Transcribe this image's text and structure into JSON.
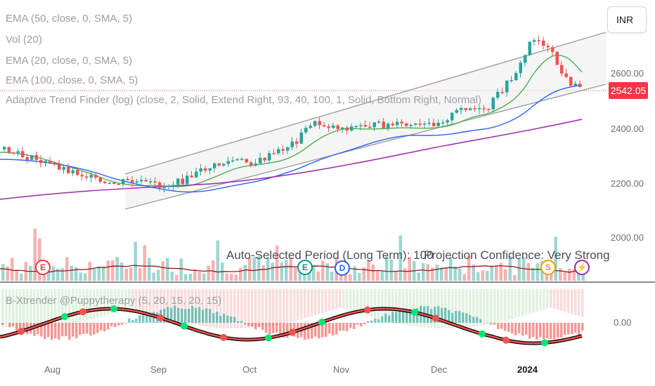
{
  "legend": [
    "EMA (50, close, 0, SMA, 5)",
    "Vol (20)",
    "EMA (20, close, 0, SMA, 5)",
    "EMA (100, close, 0, SMA, 5)",
    "Adaptive Trend Finder (log) (close, 2, Solid, Extend Right, 93, 40, 100, 1, Solid, Bottom Right, Normal)"
  ],
  "currency": "INR",
  "price_axis": [
    "2600.00",
    "2400.00",
    "2200.00",
    "2000.00"
  ],
  "last_price": "2542.05",
  "time_axis": [
    "Aug",
    "Sep",
    "Oct",
    "Nov",
    "Dec",
    "2024"
  ],
  "overlay": {
    "auto_period": "Auto-Selected Period (Long Term): 100",
    "confidence": "Projection Confidence: Very Strong"
  },
  "badges": [
    {
      "label": "E",
      "color": "#f23645",
      "name": "earnings-badge-1"
    },
    {
      "label": "E",
      "color": "#089981",
      "name": "earnings-badge-2"
    },
    {
      "label": "D",
      "color": "#2962ff",
      "name": "dividend-badge"
    },
    {
      "label": "S",
      "color": "#ff9800",
      "name": "split-badge"
    },
    {
      "label": "⚡",
      "color": "#9c27b0",
      "name": "event-bolt-badge"
    }
  ],
  "oscillator": {
    "title": "B-Xtrender @Puppytherapy (5, 20, 15, 20, 15)",
    "zero_label": "0.00"
  },
  "colors": {
    "up": "#26a69a",
    "down": "#ef5350",
    "ema20": "#4caf50",
    "ema50": "#2962ff",
    "ema100": "#9c27b0",
    "channel": "#9e9e9e",
    "last_price_bg": "#f23645"
  }
}
